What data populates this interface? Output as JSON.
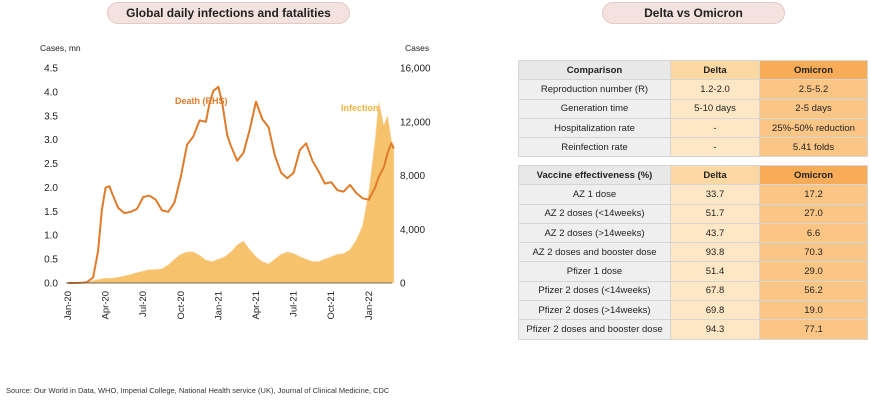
{
  "left_title": "Global daily infections and fatalities",
  "right_title": "Delta vs Omicron",
  "source": "Source: Our World in Data, WHO, Imperial College, National Health service (UK), Journal of Clinical Medicine, CDC",
  "colors": {
    "death": "#e07b2b",
    "infection": "#f6c26b",
    "infection_light": "#f7dcb0"
  },
  "chart_data": {
    "type": "area",
    "left_axis_label": "Cases, mn",
    "right_axis_label": "Cases",
    "left_ticks": [
      "4.5",
      "4.0",
      "3.5",
      "3.0",
      "2.5",
      "2.0",
      "1.5",
      "1.0",
      "0.5",
      "0.0"
    ],
    "right_ticks": [
      "16,000",
      "12,000",
      "8,000",
      "4,000",
      "0"
    ],
    "ylim_left": [
      0,
      4.5
    ],
    "ylim_right": [
      0,
      16000
    ],
    "x_ticks": [
      "Jan-20",
      "Apr-20",
      "Jul-20",
      "Oct-20",
      "Jan-21",
      "Apr-21",
      "Jul-21",
      "Oct-21",
      "Jan-22"
    ],
    "annotations": [
      "Death (RHS)",
      "Infection"
    ],
    "series": [
      {
        "name": "Infection",
        "axis": "left",
        "x": [
          0,
          0.5,
          1,
          1.5,
          2,
          2.5,
          3,
          3.5,
          4,
          4.5,
          5,
          5.5,
          6,
          6.5,
          7,
          7.5,
          8,
          8.5,
          9,
          9.5,
          10,
          10.5,
          11,
          11.5,
          12,
          12.5,
          13,
          13.5,
          14,
          14.5,
          15,
          15.5,
          16,
          16.5,
          17,
          17.5,
          18,
          18.5,
          19,
          19.5,
          20,
          20.5,
          21,
          21.5,
          22,
          22.5,
          23,
          23.5,
          24,
          24.5,
          24.8,
          25.2,
          25.5,
          25.8,
          26
        ],
        "y": [
          0,
          0,
          0,
          0.01,
          0.05,
          0.08,
          0.1,
          0.1,
          0.12,
          0.15,
          0.18,
          0.22,
          0.25,
          0.28,
          0.28,
          0.3,
          0.38,
          0.5,
          0.6,
          0.65,
          0.65,
          0.58,
          0.48,
          0.45,
          0.5,
          0.55,
          0.65,
          0.8,
          0.88,
          0.7,
          0.55,
          0.45,
          0.4,
          0.5,
          0.6,
          0.65,
          0.62,
          0.55,
          0.5,
          0.45,
          0.45,
          0.5,
          0.55,
          0.6,
          0.62,
          0.7,
          0.9,
          1.2,
          1.9,
          3.0,
          3.8,
          3.3,
          3.5,
          3.0,
          2.8
        ]
      },
      {
        "name": "Death (RHS)",
        "axis": "right",
        "x": [
          0,
          0.5,
          1,
          1.5,
          2,
          2.4,
          2.7,
          3,
          3.3,
          3.6,
          4,
          4.5,
          5,
          5.5,
          6,
          6.5,
          7,
          7.5,
          8,
          8.5,
          9,
          9.5,
          10,
          10.5,
          11,
          11.3,
          11.6,
          12,
          12.3,
          12.7,
          13,
          13.5,
          14,
          14.5,
          15,
          15.5,
          16,
          16.5,
          17,
          17.5,
          18,
          18.5,
          19,
          19.5,
          20,
          20.5,
          21,
          21.5,
          22,
          22.5,
          23,
          23.5,
          24,
          24.5,
          24.8,
          25.2,
          25.5,
          25.8,
          26
        ],
        "y": [
          0,
          0,
          20,
          60,
          400,
          2400,
          5400,
          7100,
          7200,
          6500,
          5600,
          5200,
          5300,
          5500,
          6400,
          6500,
          6200,
          5400,
          5300,
          6000,
          7900,
          10300,
          10900,
          12100,
          12000,
          13400,
          14300,
          14600,
          13400,
          11000,
          10200,
          9100,
          9700,
          11400,
          13500,
          12200,
          11600,
          9500,
          8200,
          7800,
          8200,
          9900,
          10400,
          9100,
          8300,
          7400,
          7500,
          6900,
          6800,
          7300,
          6700,
          6300,
          6200,
          7100,
          7900,
          8600,
          9700,
          10400,
          10000
        ]
      }
    ]
  },
  "table_effect": {
    "headers": [
      "Comparison",
      "Delta",
      "Omicron"
    ],
    "rows": [
      [
        "Reproduction number (R)",
        "1.2-2.0",
        "2.5-5.2"
      ],
      [
        "Generation time",
        "5-10 days",
        "2-5 days"
      ],
      [
        "Hospitalization rate",
        "-",
        "25%-50% reduction"
      ],
      [
        "Reinfection rate",
        "-",
        "5.41 folds"
      ]
    ]
  },
  "table_vaccine": {
    "headers": [
      "Vaccine effectiveness (%)",
      "Delta",
      "Omicron"
    ],
    "rows": [
      [
        "AZ 1 dose",
        "33.7",
        "17.2"
      ],
      [
        "AZ 2 doses (<14weeks)",
        "51.7",
        "27.0"
      ],
      [
        "AZ 2 doses (>14weeks)",
        "43.7",
        "6.6"
      ],
      [
        "AZ 2 doses and booster dose",
        "93.8",
        "70.3"
      ],
      [
        "Pfizer 1 dose",
        "51.4",
        "29.0"
      ],
      [
        "Pfizer 2 doses (<14weeks)",
        "67.8",
        "56.2"
      ],
      [
        "Pfizer 2 doses (>14weeks)",
        "69.8",
        "19.0"
      ],
      [
        "Pfizer 2 doses and booster dose",
        "94.3",
        "77.1"
      ]
    ]
  }
}
